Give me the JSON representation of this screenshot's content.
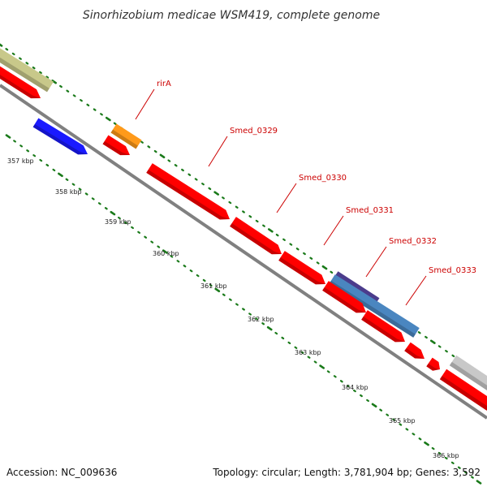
{
  "title": "Sinorhizobium medicae WSM419, complete genome",
  "footer": {
    "accession": "Accession: NC_009636",
    "topology": "Topology: circular; Length: 3,781,904 bp; Genes: 3,592"
  },
  "colors": {
    "backbone": "#808080",
    "tick": "#1a7a1a",
    "label_line": "#cc0000",
    "label_text": "#cc0000"
  },
  "ticks": [
    {
      "label": "357 kbp"
    },
    {
      "label": "358 kbp"
    },
    {
      "label": "359 kbp"
    },
    {
      "label": "360 kbp"
    },
    {
      "label": "361 kbp"
    },
    {
      "label": "362 kbp"
    },
    {
      "label": "363 kbp"
    },
    {
      "label": "364 kbp"
    },
    {
      "label": "365 kbp"
    },
    {
      "label": "366 kbp"
    }
  ],
  "gene_labels": [
    "rirA",
    "Smed_0329",
    "Smed_0330",
    "Smed_0331",
    "Smed_0332",
    "Smed_0333"
  ],
  "features": [
    {
      "name": "olive-feature",
      "color": "#c8c88a"
    },
    {
      "name": "red-feature-a",
      "color": "#ff0000"
    },
    {
      "name": "blue-feature",
      "color": "#1a1aff"
    },
    {
      "name": "orange-feature",
      "color": "#ff9a1a"
    },
    {
      "name": "red-feature-b",
      "color": "#ff0000"
    },
    {
      "name": "smed-0329-gene",
      "color": "#ff0000"
    },
    {
      "name": "smed-0330-gene",
      "color": "#ff0000"
    },
    {
      "name": "smed-0331-gene",
      "color": "#ff0000"
    },
    {
      "name": "indigo-feature",
      "color": "#4b3c8c"
    },
    {
      "name": "steelblue-feature",
      "color": "#4a86c0"
    },
    {
      "name": "red-feature-c",
      "color": "#ff0000"
    },
    {
      "name": "red-feature-d",
      "color": "#ff0000"
    },
    {
      "name": "red-feature-e",
      "color": "#ff0000"
    },
    {
      "name": "red-feature-f",
      "color": "#ff0000"
    },
    {
      "name": "grey-feature",
      "color": "#c8c8c8"
    },
    {
      "name": "red-feature-g",
      "color": "#ff0000"
    }
  ]
}
